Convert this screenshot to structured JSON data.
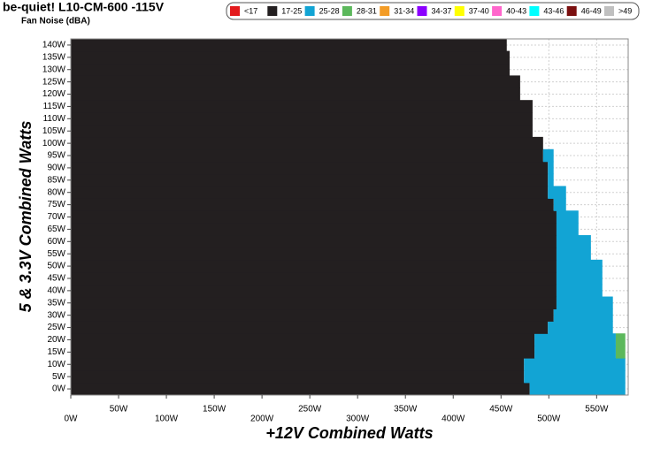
{
  "chart_data": {
    "type": "noise-map",
    "title": "be-quiet! L10-CM-600 -115V",
    "subtitle": "Fan Noise (dBA)",
    "x_label": "+12V Combined Watts",
    "y_label": "5 & 3.3V Combined Watts",
    "xlim": [
      0,
      583
    ],
    "ylim": [
      -2.5,
      142.5
    ],
    "grid": true,
    "legend": "top-right",
    "xticks": [
      {
        "value": 0,
        "label": "0W"
      },
      {
        "value": 50,
        "label": "50W"
      },
      {
        "value": 100,
        "label": "100W"
      },
      {
        "value": 150,
        "label": "150W"
      },
      {
        "value": 200,
        "label": "200W"
      },
      {
        "value": 250,
        "label": "250W"
      },
      {
        "value": 300,
        "label": "300W"
      },
      {
        "value": 350,
        "label": "350W"
      },
      {
        "value": 400,
        "label": "400W"
      },
      {
        "value": 450,
        "label": "450W"
      },
      {
        "value": 500,
        "label": "500W"
      },
      {
        "value": 550,
        "label": "550W"
      }
    ],
    "yticks": [
      {
        "value": 0,
        "label": "0W"
      },
      {
        "value": 5,
        "label": "5W"
      },
      {
        "value": 10,
        "label": "10W"
      },
      {
        "value": 15,
        "label": "15W"
      },
      {
        "value": 20,
        "label": "20W"
      },
      {
        "value": 25,
        "label": "25W"
      },
      {
        "value": 30,
        "label": "30W"
      },
      {
        "value": 35,
        "label": "35W"
      },
      {
        "value": 40,
        "label": "40W"
      },
      {
        "value": 45,
        "label": "45W"
      },
      {
        "value": 50,
        "label": "50W"
      },
      {
        "value": 55,
        "label": "55W"
      },
      {
        "value": 60,
        "label": "60W"
      },
      {
        "value": 65,
        "label": "65W"
      },
      {
        "value": 70,
        "label": "70W"
      },
      {
        "value": 75,
        "label": "75W"
      },
      {
        "value": 80,
        "label": "80W"
      },
      {
        "value": 85,
        "label": "85W"
      },
      {
        "value": 90,
        "label": "90W"
      },
      {
        "value": 95,
        "label": "95W"
      },
      {
        "value": 100,
        "label": "100W"
      },
      {
        "value": 105,
        "label": "105W"
      },
      {
        "value": 110,
        "label": "110W"
      },
      {
        "value": 115,
        "label": "115W"
      },
      {
        "value": 120,
        "label": "120W"
      },
      {
        "value": 125,
        "label": "125W"
      },
      {
        "value": 130,
        "label": "130W"
      },
      {
        "value": 135,
        "label": "135W"
      },
      {
        "value": 140,
        "label": "140W"
      }
    ],
    "y": [
      0,
      5,
      10,
      15,
      20,
      25,
      30,
      35,
      40,
      45,
      50,
      55,
      60,
      65,
      70,
      75,
      80,
      85,
      90,
      95,
      100,
      105,
      110,
      115,
      120,
      125,
      130,
      135,
      140
    ],
    "series": [
      {
        "name": "<17",
        "color": "#e31a1c"
      },
      {
        "name": "17-25",
        "color": "#231f20",
        "values": [
          480,
          474,
          474,
          485,
          485,
          499,
          505,
          508,
          508,
          508,
          508,
          508,
          508,
          508,
          508,
          505,
          499,
          499,
          499,
          494,
          494,
          483,
          483,
          483,
          470,
          470,
          459,
          459,
          456
        ]
      },
      {
        "name": "25-28",
        "color": "#12a4d4",
        "values": [
          100,
          106,
          106,
          85,
          85,
          68,
          62,
          59,
          48,
          48,
          48,
          36,
          36,
          23,
          23,
          13,
          19,
          6,
          6,
          11,
          null,
          null,
          null,
          null,
          null,
          null,
          null,
          null,
          null
        ]
      },
      {
        "name": "28-31",
        "color": "#5cb85c",
        "values": [
          null,
          null,
          null,
          10,
          10,
          null,
          null,
          null,
          null,
          null,
          null,
          null,
          null,
          null,
          null,
          null,
          null,
          null,
          null,
          null,
          null,
          null,
          null,
          null,
          null,
          null,
          null,
          null,
          null
        ]
      },
      {
        "name": "31-34",
        "color": "#f39c26"
      },
      {
        "name": "34-37",
        "color": "#8b00ff"
      },
      {
        "name": "37-40",
        "color": "#ffff00"
      },
      {
        "name": "40-43",
        "color": "#ff66cc"
      },
      {
        "name": "43-46",
        "color": "#00ffff"
      },
      {
        "name": "46-49",
        "color": "#7b1010"
      },
      {
        "name": ">49",
        "color": "#c0c0c0"
      }
    ]
  }
}
